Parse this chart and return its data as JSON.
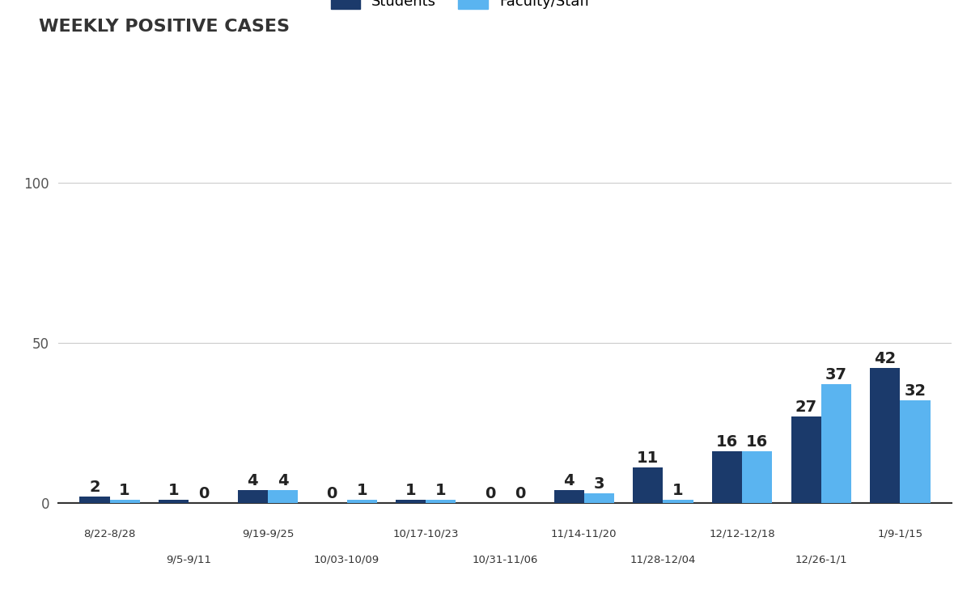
{
  "weeks": [
    "8/22-8/28",
    "9/5-9/11",
    "9/19-9/25",
    "10/03-10/09",
    "10/17-10/23",
    "10/31-11/06",
    "11/14-11/20",
    "11/28-12/04",
    "12/12-12/18",
    "12/26-1/1",
    "1/9-1/15"
  ],
  "students_values": [
    2,
    1,
    4,
    0,
    1,
    0,
    4,
    11,
    16,
    27,
    42
  ],
  "faculty_values": [
    1,
    0,
    4,
    1,
    1,
    0,
    3,
    1,
    16,
    37,
    32
  ],
  "student_color": "#1b3a6b",
  "faculty_color": "#5ab4f0",
  "background_color": "#ffffff",
  "title": "WEEKLY POSITIVE CASES",
  "title_fontsize": 16,
  "bar_width": 0.38,
  "ylim": [
    0,
    115
  ]
}
